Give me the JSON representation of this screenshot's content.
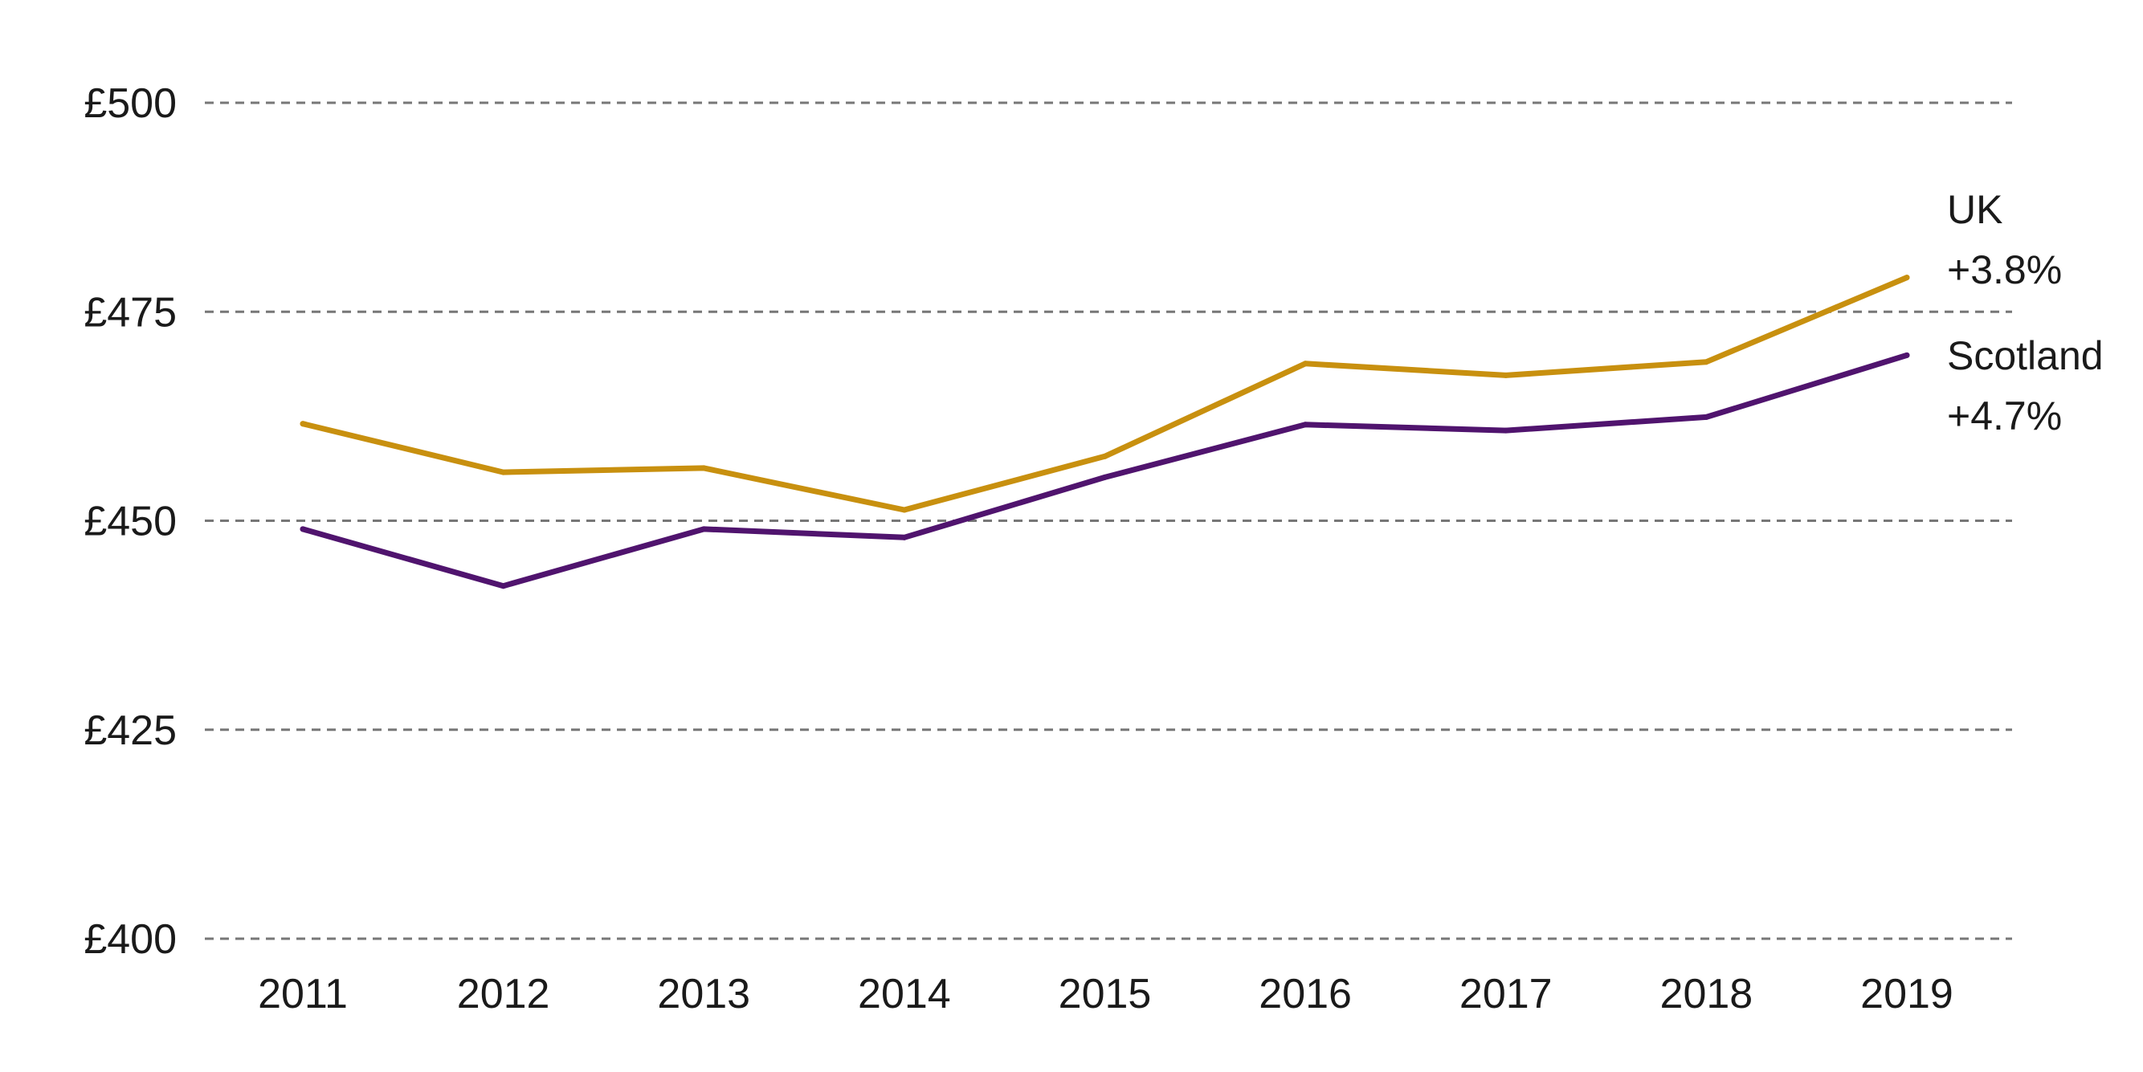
{
  "chart_data": {
    "type": "line",
    "x": [
      2011,
      2012,
      2013,
      2014,
      2015,
      2016,
      2017,
      2018,
      2019
    ],
    "x_tick_labels": [
      "2011",
      "2012",
      "2013",
      "2014",
      "2015",
      "2016",
      "2017",
      "2018",
      "2019"
    ],
    "ylim": [
      400,
      500
    ],
    "y_ticks": [
      400,
      425,
      450,
      475,
      500
    ],
    "y_tick_labels": [
      "£400",
      "£425",
      "£450",
      "£475",
      "£500"
    ],
    "grid": "horizontal dashed",
    "series": [
      {
        "name": "UK",
        "change_label": "+3.8%",
        "color": "#C8900F",
        "values": [
          461.6,
          455.8,
          456.3,
          451.3,
          457.7,
          468.8,
          467.4,
          469.0,
          479.1
        ]
      },
      {
        "name": "Scotland",
        "change_label": "+4.7%",
        "color": "#50146E",
        "values": [
          449.0,
          442.2,
          449.0,
          448.0,
          455.2,
          461.5,
          460.8,
          462.4,
          469.8
        ]
      }
    ],
    "title": "",
    "xlabel": "",
    "ylabel": ""
  }
}
